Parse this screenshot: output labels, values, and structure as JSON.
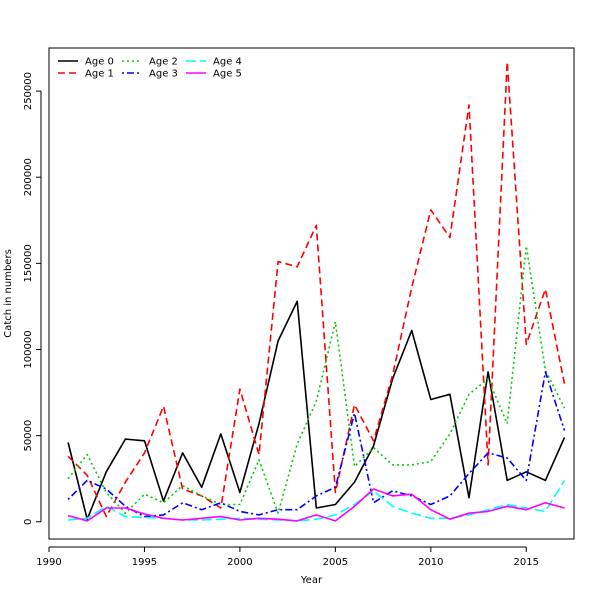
{
  "chart_data": {
    "type": "line",
    "title": "",
    "xlabel": "Year",
    "ylabel": "Catch in numbers",
    "xlim": [
      1990,
      2017.5
    ],
    "ylim": [
      -10000,
      275000
    ],
    "x_ticks": [
      1990,
      1995,
      2000,
      2005,
      2010,
      2015
    ],
    "y_ticks": [
      0,
      50000,
      100000,
      150000,
      200000,
      250000
    ],
    "grid": false,
    "legend_position": "top-left",
    "x": [
      1991,
      1992,
      1993,
      1994,
      1995,
      1996,
      1997,
      1998,
      1999,
      2000,
      2001,
      2002,
      2003,
      2004,
      2005,
      2006,
      2007,
      2008,
      2009,
      2010,
      2011,
      2012,
      2013,
      2014,
      2015,
      2016,
      2017
    ],
    "series": [
      {
        "name": "Age 0",
        "color": "#000000",
        "dash": "solid",
        "values": [
          46000,
          1500,
          29000,
          48000,
          47000,
          12000,
          40000,
          20000,
          51000,
          17000,
          57000,
          105000,
          128000,
          8000,
          10000,
          23000,
          44000,
          83000,
          111000,
          71000,
          74000,
          14000,
          87000,
          24000,
          29000,
          24000,
          49000
        ]
      },
      {
        "name": "Age 1",
        "color": "#ff0000",
        "dash": "dashed",
        "values": [
          38000,
          27000,
          3000,
          23000,
          40000,
          67000,
          19000,
          15000,
          8000,
          77000,
          39000,
          151000,
          148000,
          172000,
          17000,
          68000,
          47000,
          85000,
          136000,
          181000,
          165000,
          242000,
          33000,
          267000,
          103000,
          135000,
          80000
        ]
      },
      {
        "name": "Age 2",
        "color": "#00cd00",
        "dash": "dotted",
        "values": [
          25000,
          39000,
          17000,
          5000,
          16000,
          11000,
          21000,
          15000,
          10000,
          10000,
          36000,
          5000,
          45000,
          70000,
          116000,
          32000,
          43000,
          33000,
          33000,
          35000,
          51000,
          74000,
          83000,
          57000,
          160000,
          88000,
          66000
        ]
      },
      {
        "name": "Age 3",
        "color": "#0000ff",
        "dash": "dotdash",
        "values": [
          13000,
          24000,
          19000,
          9000,
          3000,
          4000,
          11000,
          7000,
          11000,
          6000,
          4000,
          7000,
          7000,
          15000,
          20000,
          63000,
          11000,
          18000,
          15000,
          10000,
          15000,
          28000,
          40000,
          37000,
          24000,
          87000,
          53000
        ]
      },
      {
        "name": "Age 4",
        "color": "#00ffff",
        "dash": "longdash",
        "values": [
          1000,
          2000,
          9000,
          3000,
          2500,
          2000,
          1000,
          1000,
          1500,
          2000,
          1500,
          1000,
          500,
          1500,
          4000,
          10000,
          18000,
          9000,
          5000,
          2000,
          2000,
          4000,
          7000,
          10000,
          8000,
          6000,
          24000
        ]
      },
      {
        "name": "Age 5",
        "color": "#ff00ff",
        "dash": "solid",
        "values": [
          3500,
          500,
          8000,
          8000,
          4500,
          2000,
          1000,
          2000,
          3000,
          1000,
          2000,
          1500,
          500,
          4000,
          500,
          9000,
          19000,
          15000,
          16000,
          7000,
          1500,
          5000,
          6000,
          9000,
          7000,
          11000,
          8000
        ]
      }
    ]
  }
}
